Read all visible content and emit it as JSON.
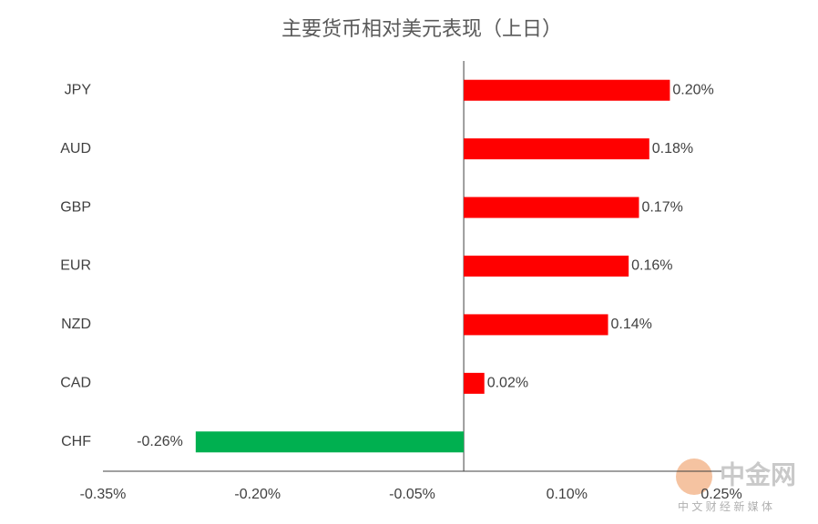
{
  "chart_data": {
    "type": "hbar",
    "title": "主要货币相对美元表现（上日）",
    "categories": [
      "JPY",
      "AUD",
      "GBP",
      "EUR",
      "NZD",
      "CAD",
      "CHF"
    ],
    "values": [
      0.2,
      0.18,
      0.17,
      0.16,
      0.14,
      0.02,
      -0.26
    ],
    "value_labels": [
      "0.20%",
      "0.18%",
      "0.17%",
      "0.16%",
      "0.14%",
      "0.02%",
      "-0.26%"
    ],
    "colors": [
      "#ff0000",
      "#ff0000",
      "#ff0000",
      "#ff0000",
      "#ff0000",
      "#ff0000",
      "#00b050"
    ],
    "xlim": [
      -0.35,
      0.25
    ],
    "xticks": [
      {
        "value": -0.35,
        "label": "-0.35%"
      },
      {
        "value": -0.2,
        "label": "-0.20%"
      },
      {
        "value": -0.05,
        "label": "-0.05%"
      },
      {
        "value": 0.1,
        "label": "0.10%"
      },
      {
        "value": 0.25,
        "label": "0.25%"
      }
    ],
    "grid": false
  },
  "watermark": {
    "name": "中金网",
    "slogan": "中 文 财 经 新 媒 体"
  }
}
